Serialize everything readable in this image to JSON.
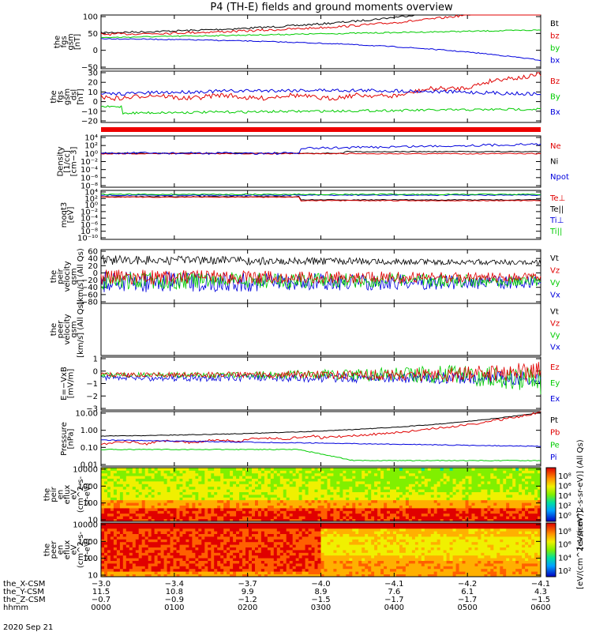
{
  "title": "P4 (TH-E) fields and ground moments overview",
  "date": "2020 Sep 21",
  "colors": {
    "black": "#000000",
    "red": "#e00000",
    "green": "#00cc00",
    "blue": "#0000dd"
  },
  "chart_data": [
    {
      "id": "p1",
      "type": "line",
      "ylabel": [
        "the",
        "fgs",
        "gsm",
        "[nT]"
      ],
      "yticks": [
        "100",
        "50",
        "0",
        "−50"
      ],
      "ylim": [
        -75,
        105
      ],
      "series": [
        {
          "name": "Bt",
          "color": "black"
        },
        {
          "name": "bz",
          "color": "red"
        },
        {
          "name": "by",
          "color": "green"
        },
        {
          "name": "bx",
          "color": "blue"
        }
      ]
    },
    {
      "id": "p2",
      "type": "line",
      "ylabel": [
        "the",
        "fgs",
        "gsm",
        "_dsl",
        "[nT]"
      ],
      "yticks": [
        "30",
        "20",
        "10",
        "0",
        "−10",
        "−20"
      ],
      "ylim": [
        -25,
        30
      ],
      "series": [
        {
          "name": "Bz",
          "color": "red"
        },
        {
          "name": "By",
          "color": "green"
        },
        {
          "name": "Bx",
          "color": "blue"
        }
      ]
    },
    {
      "id": "p3",
      "type": "line",
      "ylabel": [
        "Density",
        "[1/cc]",
        "[cm−3]"
      ],
      "yticks": [
        "10⁴",
        "10²",
        "10⁰",
        "10⁻²",
        "10⁻⁴",
        "10⁻⁶",
        "10⁻⁸"
      ],
      "log": true,
      "series": [
        {
          "name": "Ne",
          "color": "red"
        },
        {
          "name": "Ni",
          "color": "black"
        },
        {
          "name": "Npot",
          "color": "blue"
        }
      ]
    },
    {
      "id": "p4",
      "type": "line",
      "ylabel": [
        "moqt3",
        "[eV]"
      ],
      "yticks": [
        "10⁴",
        "10²",
        "10⁰",
        "10⁻²",
        "10⁻⁴",
        "10⁻⁶",
        "10⁻⁸",
        "10⁻¹⁰"
      ],
      "log": true,
      "series": [
        {
          "name": "Te⊥",
          "color": "red"
        },
        {
          "name": "Te||",
          "color": "black"
        },
        {
          "name": "Ti⊥",
          "color": "blue"
        },
        {
          "name": "Ti||",
          "color": "green"
        }
      ]
    },
    {
      "id": "p5",
      "type": "line",
      "ylabel": [
        "the",
        "peir",
        "velocity",
        "gsm",
        "[km/s] (All Qs)"
      ],
      "yticks": [
        "60",
        "40",
        "20",
        "0",
        "−20",
        "−40",
        "−60",
        "−80"
      ],
      "ylim": [
        -80,
        60
      ],
      "series": [
        {
          "name": "Vt",
          "color": "black"
        },
        {
          "name": "Vz",
          "color": "red"
        },
        {
          "name": "Vy",
          "color": "green"
        },
        {
          "name": "Vx",
          "color": "blue"
        }
      ]
    },
    {
      "id": "p6",
      "type": "line",
      "ylabel": [
        "the",
        "peer",
        "velocity",
        "gsm",
        "[km/s] (All Qs)"
      ],
      "yticks": [],
      "series": [
        {
          "name": "Vt",
          "color": "black"
        },
        {
          "name": "Vz",
          "color": "red"
        },
        {
          "name": "Vy",
          "color": "green"
        },
        {
          "name": "Vx",
          "color": "blue"
        }
      ]
    },
    {
      "id": "p7",
      "type": "line",
      "ylabel": [
        "E=−VxB",
        "[mV/m]"
      ],
      "yticks": [
        "1",
        "0",
        "−1",
        "−2",
        "−3"
      ],
      "ylim": [
        -3,
        1.5
      ],
      "series": [
        {
          "name": "Ez",
          "color": "red"
        },
        {
          "name": "Ey",
          "color": "green"
        },
        {
          "name": "Ex",
          "color": "blue"
        }
      ]
    },
    {
      "id": "p8",
      "type": "line",
      "ylabel": [
        "Pressure",
        "[nPa]"
      ],
      "yticks": [
        "10.00",
        "1.00",
        "0.10",
        "0.01"
      ],
      "log": true,
      "series": [
        {
          "name": "Pt",
          "color": "black"
        },
        {
          "name": "Pb",
          "color": "red"
        },
        {
          "name": "Pe",
          "color": "green"
        },
        {
          "name": "Pi",
          "color": "blue"
        }
      ]
    },
    {
      "id": "p9",
      "type": "heatmap",
      "ylabel": [
        "the",
        "peir",
        "en",
        "eflux",
        "eV",
        "(cm^2-s-",
        "sr-eV)"
      ],
      "yticks": [
        "10000",
        "1000",
        "100",
        "10"
      ],
      "colorbar": {
        "ticks": [
          "10⁸",
          "10⁶",
          "10⁴",
          "10²",
          "10⁰"
        ],
        "label": "[eV/(cm^2-s-sr-eV)] (All Qs)"
      }
    },
    {
      "id": "p10",
      "type": "heatmap",
      "ylabel": [
        "the",
        "peer",
        "en",
        "eflux",
        "eV",
        "(cm^2-s-",
        "sr-eV)"
      ],
      "yticks": [
        "10000",
        "1000",
        "100",
        "10"
      ],
      "colorbar": {
        "ticks": [
          "10⁸",
          "10⁶",
          "10⁴",
          "10²"
        ],
        "label": "[eV/(cm^2-s-sr-eV)]"
      }
    }
  ],
  "footer": {
    "rows": [
      {
        "label": "the_X-CSM",
        "values": [
          "−3.0",
          "−3.4",
          "−3.7",
          "−4.0",
          "−4.1",
          "−4.2",
          "−4.1"
        ]
      },
      {
        "label": "the_Y-CSM",
        "values": [
          "11.5",
          "10.8",
          "9.9",
          "8.9",
          "7.6",
          "6.1",
          "4.3"
        ]
      },
      {
        "label": "the_Z-CSM",
        "values": [
          "−0.7",
          "−0.9",
          "−1.2",
          "−1.5",
          "−1.7",
          "−1.7",
          "−1.5"
        ]
      },
      {
        "label": "hhmm",
        "values": [
          "0000",
          "0100",
          "0200",
          "0300",
          "0400",
          "0500",
          "0600"
        ]
      }
    ]
  }
}
